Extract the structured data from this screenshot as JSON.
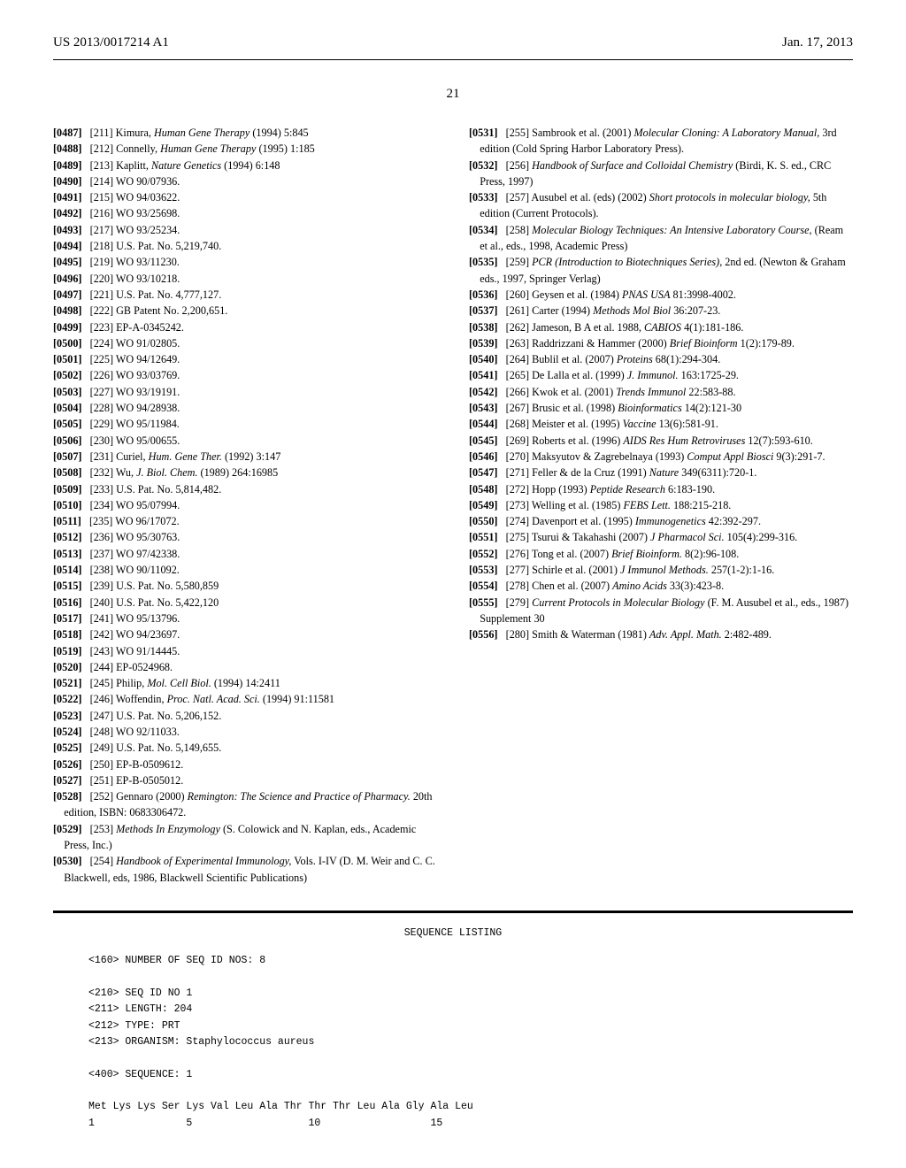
{
  "header": {
    "left": "US 2013/0017214 A1",
    "right": "Jan. 17, 2013"
  },
  "pagenum": "21",
  "left": [
    {
      "p": "[0487]",
      "t": "[211] Kimura, <i>Human Gene Therapy</i> (1994) 5:845"
    },
    {
      "p": "[0488]",
      "t": "[212] Connelly, <i>Human Gene Therapy</i> (1995) 1:185"
    },
    {
      "p": "[0489]",
      "t": "[213] Kaplitt, <i>Nature Genetics</i> (1994) 6:148"
    },
    {
      "p": "[0490]",
      "t": "[214] WO 90/07936."
    },
    {
      "p": "[0491]",
      "t": "[215] WO 94/03622."
    },
    {
      "p": "[0492]",
      "t": "[216] WO 93/25698."
    },
    {
      "p": "[0493]",
      "t": "[217] WO 93/25234."
    },
    {
      "p": "[0494]",
      "t": "[218] U.S. Pat. No. 5,219,740."
    },
    {
      "p": "[0495]",
      "t": "[219] WO 93/11230."
    },
    {
      "p": "[0496]",
      "t": "[220] WO 93/10218."
    },
    {
      "p": "[0497]",
      "t": "[221] U.S. Pat. No. 4,777,127."
    },
    {
      "p": "[0498]",
      "t": "[222] GB Patent No. 2,200,651."
    },
    {
      "p": "[0499]",
      "t": "[223] EP-A-0345242."
    },
    {
      "p": "[0500]",
      "t": "[224] WO 91/02805."
    },
    {
      "p": "[0501]",
      "t": "[225] WO 94/12649."
    },
    {
      "p": "[0502]",
      "t": "[226] WO 93/03769."
    },
    {
      "p": "[0503]",
      "t": "[227] WO 93/19191."
    },
    {
      "p": "[0504]",
      "t": "[228] WO 94/28938."
    },
    {
      "p": "[0505]",
      "t": "[229] WO 95/11984."
    },
    {
      "p": "[0506]",
      "t": "[230] WO 95/00655."
    },
    {
      "p": "[0507]",
      "t": "[231] Curiel, <i>Hum. Gene Ther.</i> (1992) 3:147"
    },
    {
      "p": "[0508]",
      "t": "[232] Wu, <i>J. Biol. Chem.</i> (1989) 264:16985"
    },
    {
      "p": "[0509]",
      "t": "[233] U.S. Pat. No. 5,814,482."
    },
    {
      "p": "[0510]",
      "t": "[234] WO 95/07994."
    },
    {
      "p": "[0511]",
      "t": "[235] WO 96/17072."
    },
    {
      "p": "[0512]",
      "t": "[236] WO 95/30763."
    },
    {
      "p": "[0513]",
      "t": "[237] WO 97/42338."
    },
    {
      "p": "[0514]",
      "t": "[238] WO 90/11092."
    },
    {
      "p": "[0515]",
      "t": "[239] U.S. Pat. No. 5,580,859"
    },
    {
      "p": "[0516]",
      "t": "[240] U.S. Pat. No. 5,422,120"
    },
    {
      "p": "[0517]",
      "t": "[241] WO 95/13796."
    },
    {
      "p": "[0518]",
      "t": "[242] WO 94/23697."
    },
    {
      "p": "[0519]",
      "t": "[243] WO 91/14445."
    },
    {
      "p": "[0520]",
      "t": "[244] EP-0524968."
    },
    {
      "p": "[0521]",
      "t": "[245] Philip, <i>Mol. Cell Biol.</i> (1994) 14:2411"
    },
    {
      "p": "[0522]",
      "t": "[246] Woffendin, <i>Proc. Natl. Acad. Sci.</i> (1994) 91:11581"
    },
    {
      "p": "[0523]",
      "t": "[247] U.S. Pat. No. 5,206,152."
    },
    {
      "p": "[0524]",
      "t": "[248] WO 92/11033."
    },
    {
      "p": "[0525]",
      "t": "[249] U.S. Pat. No. 5,149,655."
    },
    {
      "p": "[0526]",
      "t": "[250] EP-B-0509612."
    },
    {
      "p": "[0527]",
      "t": "[251] EP-B-0505012."
    },
    {
      "p": "[0528]",
      "t": "[252] Gennaro (2000) <i>Remington: The Science and Practice of Pharmacy.</i> 20th edition, ISBN: 0683306472."
    },
    {
      "p": "[0529]",
      "t": "[253] <i>Methods In Enzymology</i> (S. Colowick and N. Kaplan, eds., Academic Press, Inc.)"
    },
    {
      "p": "[0530]",
      "t": "[254] <i>Handbook of Experimental Immunology,</i> Vols. I-IV (D. M. Weir and C. C. Blackwell, eds, 1986, Blackwell Scientific Publications)"
    }
  ],
  "right": [
    {
      "p": "[0531]",
      "t": "[255] Sambrook et al. (2001) <i>Molecular Cloning: A Laboratory Manual,</i> 3rd edition (Cold Spring Harbor Laboratory Press)."
    },
    {
      "p": "[0532]",
      "t": "[256] <i>Handbook of Surface and Colloidal Chemistry</i> (Birdi, K. S. ed., CRC Press, 1997)"
    },
    {
      "p": "[0533]",
      "t": "[257] Ausubel et al. (eds) (2002) <i>Short protocols in molecular biology,</i> 5th edition (Current Protocols)."
    },
    {
      "p": "[0534]",
      "t": "[258] <i>Molecular Biology Techniques: An Intensive Laboratory Course,</i> (Ream et al., eds., 1998, Academic Press)"
    },
    {
      "p": "[0535]",
      "t": "[259] <i>PCR (Introduction to Biotechniques Series)</i>, 2nd ed. (Newton & Graham eds., 1997, Springer Verlag)"
    },
    {
      "p": "[0536]",
      "t": "[260] Geysen et al. (1984) <i>PNAS USA</i> 81:3998-4002."
    },
    {
      "p": "[0537]",
      "t": "[261] Carter (1994) <i>Methods Mol Biol</i> 36:207-23."
    },
    {
      "p": "[0538]",
      "t": "[262] Jameson, B A et al. 1988, <i>CABIOS</i> 4(1):181-186."
    },
    {
      "p": "[0539]",
      "t": "[263] Raddrizzani & Hammer (2000) <i>Brief Bioinform</i> 1(2):179-89."
    },
    {
      "p": "[0540]",
      "t": "[264] Bublil et al. (2007) <i>Proteins</i> 68(1):294-304."
    },
    {
      "p": "[0541]",
      "t": "[265] De Lalla et al. (1999) <i>J. Immunol.</i> 163:1725-29."
    },
    {
      "p": "[0542]",
      "t": "[266] Kwok et al. (2001) <i>Trends Immunol</i> 22:583-88."
    },
    {
      "p": "[0543]",
      "t": "[267] Brusic et al. (1998) <i>Bioinformatics</i> 14(2):121-30"
    },
    {
      "p": "[0544]",
      "t": "[268] Meister et al. (1995) <i>Vaccine</i> 13(6):581-91."
    },
    {
      "p": "[0545]",
      "t": "[269] Roberts et al. (1996) <i>AIDS Res Hum Retroviruses</i> 12(7):593-610."
    },
    {
      "p": "[0546]",
      "t": "[270] Maksyutov & Zagrebelnaya (1993) <i>Comput Appl Biosci</i> 9(3):291-7."
    },
    {
      "p": "[0547]",
      "t": "[271] Feller & de la Cruz (1991) <i>Nature</i> 349(6311):720-1."
    },
    {
      "p": "[0548]",
      "t": "[272] Hopp (1993) <i>Peptide Research</i> 6:183-190."
    },
    {
      "p": "[0549]",
      "t": "[273] Welling et al. (1985) <i>FEBS Lett.</i> 188:215-218."
    },
    {
      "p": "[0550]",
      "t": "[274] Davenport et al. (1995) <i>Immunogenetics</i> 42:392-297."
    },
    {
      "p": "[0551]",
      "t": "[275] Tsurui & Takahashi (2007) <i>J Pharmacol Sci.</i> 105(4):299-316."
    },
    {
      "p": "[0552]",
      "t": "[276] Tong et al. (2007) <i>Brief Bioinform.</i> 8(2):96-108."
    },
    {
      "p": "[0553]",
      "t": "[277] Schirle et al. (2001) <i>J Immunol Methods.</i> 257(1-2):1-16."
    },
    {
      "p": "[0554]",
      "t": "[278] Chen et al. (2007) <i>Amino Acids</i> 33(3):423-8."
    },
    {
      "p": "[0555]",
      "t": "[279] <i>Current Protocols in Molecular Biology</i> (F. M. Ausubel et al., eds., 1987) Supplement 30"
    },
    {
      "p": "[0556]",
      "t": "[280] Smith & Waterman (1981) <i>Adv. Appl. Math.</i> 2:482-489."
    }
  ],
  "seq": {
    "title": "SEQUENCE LISTING",
    "lines": [
      "<160> NUMBER OF SEQ ID NOS: 8",
      "",
      "<210> SEQ ID NO 1",
      "<211> LENGTH: 204",
      "<212> TYPE: PRT",
      "<213> ORGANISM: Staphylococcus aureus",
      "",
      "<400> SEQUENCE: 1",
      "",
      "Met Lys Lys Ser Lys Val Leu Ala Thr Thr Thr Leu Ala Gly Ala Leu",
      "1               5                   10                  15"
    ]
  }
}
